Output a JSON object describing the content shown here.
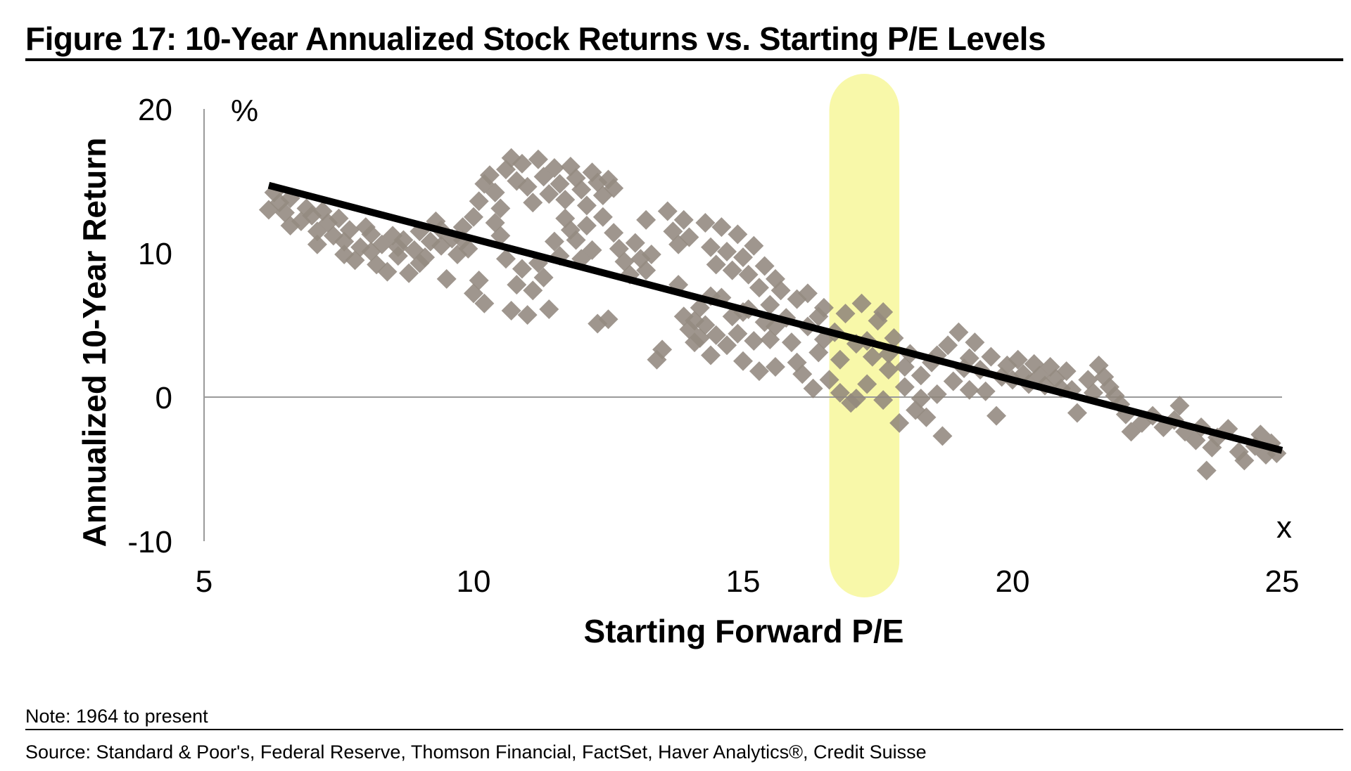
{
  "figure": {
    "title": "Figure 17: 10-Year Annualized Stock Returns vs. Starting P/E Levels",
    "note": "Note: 1964 to present",
    "source": "Source: Standard & Poor's, Federal Reserve, Thomson Financial, FactSet, Haver Analytics®, Credit Suisse"
  },
  "chart_data": {
    "type": "scatter",
    "title": "Figure 17: 10-Year Annualized Stock Returns vs. Starting P/E Levels",
    "xlabel": "Starting Forward P/E",
    "ylabel": "Annualized 10-Year Return",
    "x_unit": "x",
    "y_unit": "%",
    "xlim": [
      5,
      25
    ],
    "ylim": [
      -10,
      20
    ],
    "x_ticks": [
      "5",
      "10",
      "15",
      "20",
      "25"
    ],
    "y_ticks": [
      "20",
      "10",
      "0",
      "-10"
    ],
    "grid": false,
    "legend": "none",
    "colors": {
      "points": "#8f857b",
      "trend": "#000000",
      "highlight": "#f7f79a"
    },
    "highlight_band": {
      "x_from": 16.6,
      "x_to": 17.9
    },
    "trendline": {
      "x": [
        6.2,
        25
      ],
      "y": [
        14.7,
        -3.7
      ]
    },
    "series": [
      {
        "points": [
          [
            6.2,
            13.0
          ],
          [
            6.3,
            14.2
          ],
          [
            6.4,
            13.5
          ],
          [
            6.5,
            12.8
          ],
          [
            6.6,
            13.8
          ],
          [
            6.8,
            12.2
          ],
          [
            6.9,
            13.1
          ],
          [
            7.0,
            12.6
          ],
          [
            7.1,
            11.5
          ],
          [
            7.2,
            12.9
          ],
          [
            7.3,
            12.1
          ],
          [
            7.4,
            11.2
          ],
          [
            7.5,
            12.4
          ],
          [
            7.6,
            10.8
          ],
          [
            7.7,
            11.6
          ],
          [
            7.8,
            9.5
          ],
          [
            7.9,
            10.4
          ],
          [
            8.0,
            11.8
          ],
          [
            8.1,
            10.1
          ],
          [
            8.2,
            9.2
          ],
          [
            8.3,
            10.6
          ],
          [
            8.4,
            8.7
          ],
          [
            8.5,
            11.2
          ],
          [
            8.6,
            9.8
          ],
          [
            8.7,
            10.9
          ],
          [
            8.8,
            8.6
          ],
          [
            8.9,
            10.2
          ],
          [
            9.0,
            11.5
          ],
          [
            9.1,
            9.7
          ],
          [
            9.2,
            10.8
          ],
          [
            9.3,
            12.2
          ],
          [
            9.4,
            10.5
          ],
          [
            9.5,
            8.2
          ],
          [
            9.6,
            11.0
          ],
          [
            9.7,
            9.9
          ],
          [
            9.8,
            11.8
          ],
          [
            9.9,
            10.3
          ],
          [
            10.0,
            12.5
          ],
          [
            10.1,
            13.6
          ],
          [
            10.2,
            14.8
          ],
          [
            10.3,
            15.4
          ],
          [
            10.4,
            14.2
          ],
          [
            10.5,
            13.1
          ],
          [
            10.6,
            15.8
          ],
          [
            10.7,
            16.6
          ],
          [
            10.8,
            15.0
          ],
          [
            10.9,
            16.2
          ],
          [
            11.0,
            14.6
          ],
          [
            11.1,
            13.5
          ],
          [
            11.2,
            16.5
          ],
          [
            11.3,
            15.3
          ],
          [
            11.4,
            14.1
          ],
          [
            11.5,
            15.9
          ],
          [
            11.6,
            14.8
          ],
          [
            11.7,
            13.7
          ],
          [
            11.8,
            16.0
          ],
          [
            11.9,
            15.2
          ],
          [
            12.0,
            14.4
          ],
          [
            12.1,
            13.3
          ],
          [
            12.2,
            15.6
          ],
          [
            12.3,
            14.9
          ],
          [
            12.4,
            14.0
          ],
          [
            12.5,
            15.1
          ],
          [
            12.6,
            14.5
          ],
          [
            10.0,
            7.2
          ],
          [
            10.1,
            8.1
          ],
          [
            10.2,
            6.5
          ],
          [
            10.4,
            12.1
          ],
          [
            10.5,
            11.2
          ],
          [
            10.6,
            9.6
          ],
          [
            10.7,
            6.0
          ],
          [
            10.8,
            7.8
          ],
          [
            10.9,
            8.9
          ],
          [
            11.0,
            5.7
          ],
          [
            11.1,
            7.4
          ],
          [
            11.2,
            9.3
          ],
          [
            11.3,
            8.3
          ],
          [
            11.4,
            6.1
          ],
          [
            11.5,
            10.8
          ],
          [
            11.6,
            9.8
          ],
          [
            11.7,
            12.4
          ],
          [
            11.8,
            11.6
          ],
          [
            11.9,
            10.9
          ],
          [
            12.0,
            9.6
          ],
          [
            12.1,
            11.9
          ],
          [
            12.2,
            10.2
          ],
          [
            12.3,
            5.1
          ],
          [
            12.4,
            12.5
          ],
          [
            12.5,
            5.4
          ],
          [
            12.6,
            11.4
          ],
          [
            12.7,
            10.3
          ],
          [
            12.8,
            9.4
          ],
          [
            12.9,
            8.5
          ],
          [
            13.0,
            10.7
          ],
          [
            13.1,
            9.6
          ],
          [
            13.2,
            8.8
          ],
          [
            13.3,
            9.9
          ],
          [
            13.4,
            2.6
          ],
          [
            13.5,
            3.3
          ],
          [
            13.6,
            12.9
          ],
          [
            13.7,
            11.5
          ],
          [
            13.8,
            10.6
          ],
          [
            13.9,
            12.3
          ],
          [
            14.0,
            11.1
          ],
          [
            14.1,
            5.3
          ],
          [
            14.2,
            4.1
          ],
          [
            14.3,
            12.1
          ],
          [
            14.4,
            10.4
          ],
          [
            14.5,
            9.2
          ],
          [
            14.6,
            11.8
          ],
          [
            14.7,
            10.1
          ],
          [
            14.8,
            8.8
          ],
          [
            14.9,
            11.3
          ],
          [
            15.0,
            9.7
          ],
          [
            15.1,
            8.5
          ],
          [
            15.2,
            10.5
          ],
          [
            15.3,
            7.6
          ],
          [
            15.4,
            9.1
          ],
          [
            15.5,
            6.4
          ],
          [
            15.6,
            8.2
          ],
          [
            13.9,
            5.6
          ],
          [
            14.0,
            4.7
          ],
          [
            14.1,
            3.8
          ],
          [
            14.2,
            6.2
          ],
          [
            14.3,
            5.0
          ],
          [
            14.4,
            2.9
          ],
          [
            14.5,
            4.3
          ],
          [
            14.6,
            6.9
          ],
          [
            14.7,
            3.6
          ],
          [
            14.8,
            5.6
          ],
          [
            14.9,
            4.4
          ],
          [
            15.0,
            2.5
          ],
          [
            15.1,
            6.1
          ],
          [
            15.2,
            3.9
          ],
          [
            15.3,
            1.8
          ],
          [
            15.4,
            5.2
          ],
          [
            15.5,
            4.0
          ],
          [
            15.6,
            2.1
          ],
          [
            15.7,
            7.4
          ],
          [
            15.8,
            5.5
          ],
          [
            15.9,
            3.8
          ],
          [
            16.0,
            6.8
          ],
          [
            16.1,
            1.6
          ],
          [
            16.2,
            4.9
          ],
          [
            16.3,
            0.6
          ],
          [
            16.4,
            3.1
          ],
          [
            16.5,
            6.2
          ],
          [
            16.6,
            1.2
          ],
          [
            16.7,
            4.5
          ],
          [
            16.8,
            0.3
          ],
          [
            16.9,
            5.8
          ],
          [
            17.0,
            -0.4
          ],
          [
            17.1,
            3.7
          ],
          [
            17.2,
            6.5
          ],
          [
            17.3,
            0.9
          ],
          [
            17.4,
            2.8
          ],
          [
            17.5,
            5.3
          ],
          [
            17.6,
            -0.2
          ],
          [
            17.7,
            1.9
          ],
          [
            17.8,
            4.1
          ],
          [
            17.9,
            -1.8
          ],
          [
            18.0,
            0.7
          ],
          [
            18.1,
            3.0
          ],
          [
            18.2,
            -0.9
          ],
          [
            18.3,
            1.5
          ],
          [
            18.4,
            -1.4
          ],
          [
            18.5,
            2.4
          ],
          [
            18.6,
            0.2
          ],
          [
            18.7,
            -2.7
          ],
          [
            18.8,
            3.6
          ],
          [
            18.9,
            1.1
          ],
          [
            19.0,
            4.5
          ],
          [
            19.1,
            2.0
          ],
          [
            19.2,
            0.5
          ],
          [
            19.3,
            3.8
          ],
          [
            19.4,
            1.9
          ],
          [
            19.5,
            0.4
          ],
          [
            19.6,
            2.8
          ],
          [
            19.7,
            -1.3
          ],
          [
            19.8,
            1.4
          ],
          [
            19.9,
            2.2
          ],
          [
            20.0,
            1.2
          ],
          [
            20.1,
            2.6
          ],
          [
            20.2,
            1.6
          ],
          [
            20.3,
            0.9
          ],
          [
            20.4,
            2.3
          ],
          [
            20.5,
            1.5
          ],
          [
            20.6,
            0.8
          ],
          [
            20.7,
            2.1
          ],
          [
            20.8,
            1.3
          ],
          [
            20.9,
            0.6
          ],
          [
            21.0,
            1.8
          ],
          [
            21.1,
            0.5
          ],
          [
            21.2,
            -1.1
          ],
          [
            21.4,
            1.2
          ],
          [
            21.5,
            0.3
          ],
          [
            21.6,
            2.2
          ],
          [
            21.7,
            1.4
          ],
          [
            21.8,
            0.7
          ],
          [
            21.9,
            0.1
          ],
          [
            22.0,
            -0.5
          ],
          [
            22.1,
            -1.2
          ],
          [
            22.2,
            -2.4
          ],
          [
            22.4,
            -1.8
          ],
          [
            22.6,
            -1.3
          ],
          [
            22.8,
            -2.1
          ],
          [
            23.0,
            -1.6
          ],
          [
            23.1,
            -0.6
          ],
          [
            23.2,
            -2.4
          ],
          [
            23.4,
            -3.0
          ],
          [
            23.5,
            -2.1
          ],
          [
            23.6,
            -5.1
          ],
          [
            23.7,
            -3.5
          ],
          [
            23.8,
            -2.8
          ],
          [
            24.0,
            -2.2
          ],
          [
            24.2,
            -3.8
          ],
          [
            24.3,
            -4.4
          ],
          [
            24.5,
            -3.4
          ],
          [
            24.6,
            -2.6
          ],
          [
            24.7,
            -4.0
          ],
          [
            24.8,
            -3.2
          ],
          [
            24.9,
            -3.9
          ],
          [
            6.6,
            11.9
          ],
          [
            7.1,
            10.6
          ],
          [
            7.6,
            9.9
          ],
          [
            8.1,
            11.3
          ],
          [
            8.6,
            10.4
          ],
          [
            9.0,
            9.3
          ],
          [
            9.4,
            11.6
          ],
          [
            9.8,
            10.9
          ],
          [
            16.0,
            2.4
          ],
          [
            16.2,
            7.2
          ],
          [
            16.4,
            5.6
          ],
          [
            16.8,
            2.6
          ],
          [
            17.1,
            -0.1
          ],
          [
            17.3,
            3.9
          ],
          [
            17.6,
            5.9
          ],
          [
            18.0,
            2.1
          ],
          [
            18.3,
            -0.1
          ],
          [
            18.6,
            2.9
          ],
          [
            13.2,
            12.3
          ],
          [
            13.8,
            7.8
          ],
          [
            14.4,
            7.0
          ],
          [
            15.0,
            5.9
          ],
          [
            15.6,
            4.9
          ],
          [
            16.5,
            4.0
          ],
          [
            17.7,
            3.0
          ],
          [
            19.2,
            2.7
          ]
        ]
      }
    ]
  }
}
